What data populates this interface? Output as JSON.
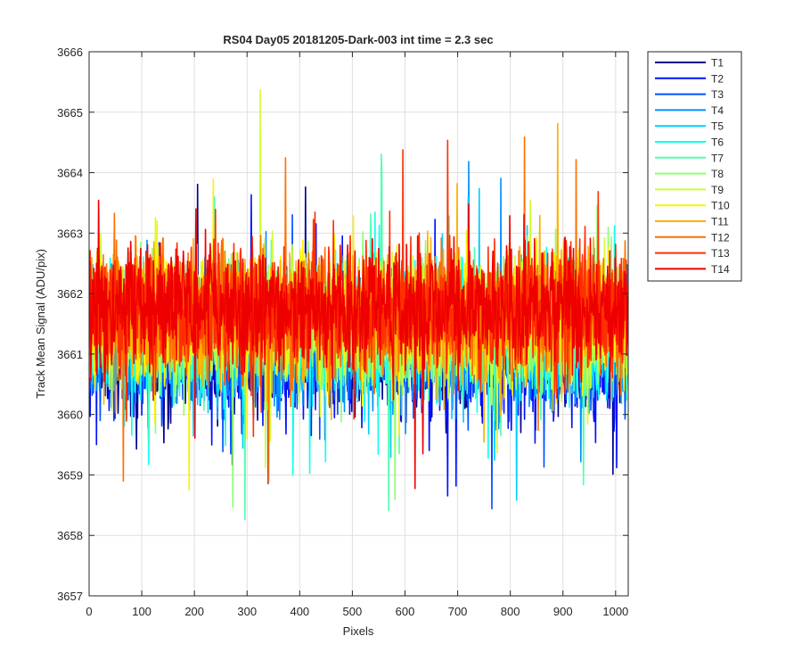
{
  "chart_data": {
    "type": "line",
    "title": "RS04 Day05 20181205-Dark-003 int time = 2.3 sec",
    "xlabel": "Pixels",
    "ylabel": "Track Mean Signal (ADU/pix)",
    "xlim": [
      0,
      1024
    ],
    "ylim": [
      3657,
      3666
    ],
    "xticks": [
      0,
      100,
      200,
      300,
      400,
      500,
      600,
      700,
      800,
      900,
      1000
    ],
    "yticks": [
      3657,
      3658,
      3659,
      3660,
      3661,
      3662,
      3663,
      3664,
      3665,
      3666
    ],
    "grid": true,
    "legend_position": "outside-top-right",
    "n_points": 1024,
    "series": [
      {
        "name": "T1",
        "color": "#00008F",
        "mean": 3661.0,
        "spread": 0.9
      },
      {
        "name": "T2",
        "color": "#0010FF",
        "mean": 3661.05,
        "spread": 0.9
      },
      {
        "name": "T3",
        "color": "#0050FF",
        "mean": 3661.1,
        "spread": 0.9
      },
      {
        "name": "T4",
        "color": "#0090FF",
        "mean": 3661.2,
        "spread": 0.9
      },
      {
        "name": "T5",
        "color": "#00CFFF",
        "mean": 3661.3,
        "spread": 0.9
      },
      {
        "name": "T6",
        "color": "#10FFEF",
        "mean": 3661.35,
        "spread": 0.9
      },
      {
        "name": "T7",
        "color": "#50FFAF",
        "mean": 3661.4,
        "spread": 0.9
      },
      {
        "name": "T8",
        "color": "#8FFF70",
        "mean": 3661.5,
        "spread": 0.9
      },
      {
        "name": "T9",
        "color": "#CFFF30",
        "mean": 3661.55,
        "spread": 0.9
      },
      {
        "name": "T10",
        "color": "#FFEF00",
        "mean": 3661.6,
        "spread": 0.9
      },
      {
        "name": "T11",
        "color": "#FFAF00",
        "mean": 3661.65,
        "spread": 0.9
      },
      {
        "name": "T12",
        "color": "#FF7000",
        "mean": 3661.7,
        "spread": 0.9
      },
      {
        "name": "T13",
        "color": "#FF3000",
        "mean": 3661.75,
        "spread": 0.9
      },
      {
        "name": "T14",
        "color": "#EF0000",
        "mean": 3661.8,
        "spread": 0.9
      }
    ]
  }
}
